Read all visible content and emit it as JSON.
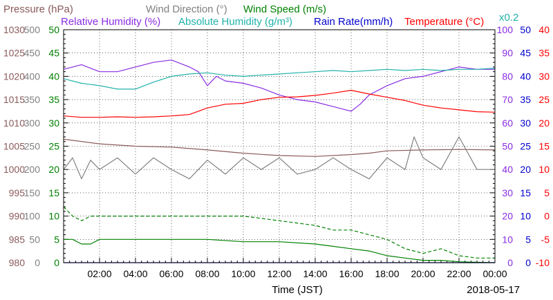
{
  "chart_data": {
    "type": "line",
    "date": "2018-05-17",
    "xlabel": "Time (JST)",
    "x_ticks": [
      "02:00",
      "04:00",
      "06:00",
      "08:00",
      "10:00",
      "12:00",
      "14:00",
      "16:00",
      "18:00",
      "20:00",
      "22:00",
      "00:00"
    ],
    "xlim": [
      0,
      24
    ],
    "axes": [
      {
        "label": "Pressure (hPa)",
        "color": "#8b5a5a",
        "ticks": [
          "980",
          "985",
          "990",
          "995",
          "1000",
          "1005",
          "1010",
          "1015",
          "1020",
          "1025",
          "1030"
        ],
        "range": [
          980,
          1030
        ],
        "side": "left"
      },
      {
        "label": "Wind Direction (°)",
        "color": "#808080",
        "ticks": [
          "0",
          "50",
          "100",
          "150",
          "200",
          "250",
          "300",
          "350",
          "400",
          "450",
          "500"
        ],
        "range": [
          0,
          500
        ],
        "side": "left"
      },
      {
        "label": "Wind Speed (m/s)",
        "color": "#008000",
        "ticks": [
          "0",
          "5",
          "10",
          "15",
          "20",
          "25",
          "30",
          "35",
          "40",
          "45",
          "50"
        ],
        "range": [
          0,
          50
        ],
        "side": "left"
      },
      {
        "label": "Relative Humidity (%)",
        "color": "#8a2be2",
        "ticks": [
          "0",
          "10",
          "20",
          "30",
          "40",
          "50",
          "60",
          "70",
          "80",
          "90",
          "100"
        ],
        "range": [
          0,
          100
        ],
        "side": "right"
      },
      {
        "label": "Absolute Humidity (g/m³)",
        "color": "#20b2aa",
        "ticks": [],
        "range": [
          0,
          20
        ],
        "side": "right",
        "note": "x0.2"
      },
      {
        "label": "Rain Rate(mm/h)",
        "color": "#0000cd",
        "ticks": [
          "0",
          "5",
          "10",
          "15",
          "20",
          "25",
          "30",
          "35",
          "40",
          "45",
          "50"
        ],
        "range": [
          0,
          50
        ],
        "side": "right"
      },
      {
        "label": "Temperature (°C)",
        "color": "#ff0000",
        "ticks": [
          "-10",
          "-5",
          "0",
          "5",
          "10",
          "15",
          "20",
          "25",
          "30",
          "35",
          "40"
        ],
        "range": [
          -10,
          40
        ],
        "side": "right"
      }
    ],
    "series": [
      {
        "name": "Pressure (hPa)",
        "axis": 0,
        "color": "#8b5a5a",
        "style": "solid",
        "x": [
          0,
          2,
          4,
          6,
          8,
          10,
          12,
          14,
          16,
          17,
          18,
          20,
          22,
          24
        ],
        "y": [
          1006.5,
          1005.5,
          1005,
          1004.8,
          1004.2,
          1003.5,
          1003,
          1002.8,
          1003.2,
          1003.5,
          1004,
          1004.2,
          1004.3,
          1004.2
        ]
      },
      {
        "name": "Wind Direction (°)",
        "axis": 1,
        "color": "#808080",
        "style": "solid",
        "x": [
          0,
          0.5,
          1,
          1.5,
          2,
          3,
          4,
          5,
          6,
          7,
          8,
          9,
          10,
          11,
          12,
          13,
          14,
          15,
          16,
          17,
          18,
          19,
          19.5,
          20,
          21,
          22,
          23,
          24
        ],
        "y": [
          200,
          225,
          180,
          220,
          200,
          225,
          190,
          225,
          200,
          180,
          220,
          190,
          225,
          200,
          225,
          190,
          200,
          225,
          200,
          180,
          225,
          200,
          270,
          225,
          200,
          270,
          200,
          200
        ]
      },
      {
        "name": "Wind Speed (m/s) avg",
        "axis": 2,
        "color": "#008000",
        "style": "solid",
        "x": [
          0,
          0.5,
          1,
          1.5,
          2,
          4,
          6,
          8,
          10,
          12,
          14,
          15,
          16,
          17,
          18,
          19,
          20,
          21,
          22,
          23,
          24
        ],
        "y": [
          5,
          5,
          4,
          4,
          5,
          5,
          5,
          5,
          4.5,
          4.5,
          4,
          3.5,
          3,
          2.5,
          1.5,
          1,
          0.5,
          0.5,
          0.2,
          0.1,
          0
        ]
      },
      {
        "name": "Wind Speed (m/s) gust",
        "axis": 2,
        "color": "#008000",
        "style": "dashed",
        "x": [
          0,
          0.5,
          1,
          1.5,
          2,
          4,
          6,
          8,
          10,
          12,
          14,
          15,
          16,
          17,
          18,
          19,
          20,
          21,
          22,
          23,
          24
        ],
        "y": [
          12,
          10,
          9,
          10,
          10,
          10,
          10,
          10,
          10,
          9,
          8,
          7,
          7,
          6,
          5,
          3,
          2,
          3,
          1.5,
          1,
          1
        ]
      },
      {
        "name": "Relative Humidity (%)",
        "axis": 3,
        "color": "#8a2be2",
        "style": "solid",
        "x": [
          0,
          1,
          2,
          3,
          4,
          5,
          6,
          7,
          7.5,
          8,
          8.5,
          9,
          10,
          11,
          12,
          13,
          14,
          15,
          16,
          16.5,
          17,
          18,
          19,
          20,
          21,
          22,
          23,
          24
        ],
        "y": [
          83,
          85,
          82,
          82,
          84,
          86,
          87,
          84,
          82,
          76,
          80,
          78,
          77,
          75,
          72,
          70,
          69,
          67,
          65,
          68,
          72,
          76,
          79,
          80,
          82,
          84,
          83,
          83
        ]
      },
      {
        "name": "Absolute Humidity (g/m³)",
        "axis": 4,
        "color": "#20b2aa",
        "style": "solid",
        "x": [
          0,
          1,
          2,
          3,
          4,
          5,
          6,
          7,
          8,
          9,
          10,
          11,
          12,
          13,
          14,
          15,
          16,
          17,
          18,
          19,
          20,
          21,
          22,
          23,
          24
        ],
        "y": [
          15.8,
          15.4,
          15.2,
          14.9,
          14.9,
          15.5,
          16.0,
          16.2,
          16.3,
          16.1,
          16.0,
          16.1,
          16.2,
          16.3,
          16.4,
          16.5,
          16.4,
          16.5,
          16.6,
          16.5,
          16.6,
          16.5,
          16.6,
          16.6,
          16.7
        ]
      },
      {
        "name": "Rain Rate(mm/h)",
        "axis": 5,
        "color": "#0000cd",
        "style": "solid",
        "x": [
          0,
          24
        ],
        "y": [
          0,
          0
        ]
      },
      {
        "name": "Temperature (°C)",
        "axis": 6,
        "color": "#ff0000",
        "style": "solid",
        "x": [
          0,
          1,
          2,
          3,
          4,
          5,
          6,
          7,
          8,
          9,
          10,
          11,
          12,
          13,
          14,
          15,
          16,
          17,
          18,
          19,
          20,
          21,
          22,
          23,
          24
        ],
        "y": [
          21.5,
          21.2,
          21.2,
          21.3,
          21.2,
          21.3,
          21.5,
          21.8,
          23.2,
          24.0,
          24.2,
          25.0,
          25.5,
          25.6,
          25.9,
          26.4,
          27.0,
          26.2,
          25.5,
          24.8,
          23.8,
          23.2,
          22.8,
          22.4,
          22.3
        ]
      }
    ]
  }
}
